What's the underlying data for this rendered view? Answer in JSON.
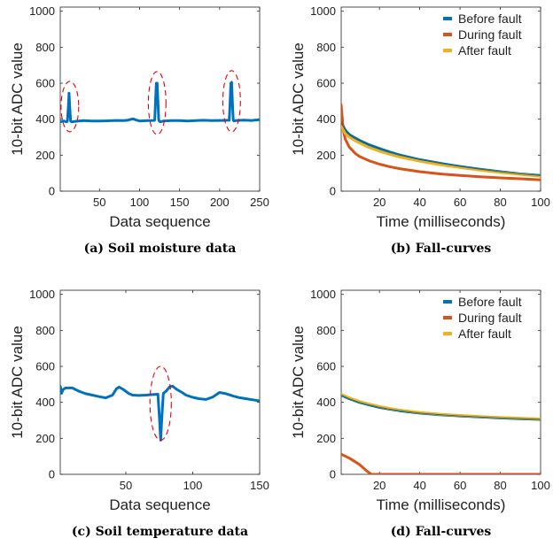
{
  "colors": {
    "before": "#0072BD",
    "during": "#D95319",
    "after": "#EDB120",
    "circle": "#E8000B",
    "axis": "#262626"
  },
  "panels": [
    {
      "caption": "(a) Soil moisture data",
      "chart_data": {
        "type": "line",
        "title": "",
        "xlabel": "Data sequence",
        "ylabel": "10-bit ADC value",
        "xlim": [
          1,
          250
        ],
        "ylim": [
          0,
          1023
        ],
        "xticks": [
          50,
          100,
          150,
          200,
          250
        ],
        "yticks": [
          0,
          200,
          400,
          600,
          800,
          1000
        ],
        "grid": false,
        "series": [
          {
            "color": "before",
            "x": [
              1,
              5,
              9,
              10,
              11,
              12,
              13,
              14,
              15,
              20,
              30,
              40,
              50,
              60,
              70,
              80,
              85,
              88,
              92,
              96,
              100,
              110,
              118,
              119,
              120,
              121,
              122,
              123,
              124,
              125,
              126,
              130,
              140,
              150,
              160,
              170,
              180,
              190,
              200,
              210,
              212,
              213,
              214,
              215,
              216,
              217,
              218,
              220,
              230,
              240,
              250
            ],
            "y": [
              385,
              390,
              385,
              390,
              460,
              545,
              460,
              390,
              385,
              388,
              392,
              390,
              390,
              391,
              393,
              392,
              394,
              398,
              402,
              395,
              390,
              392,
              393,
              395,
              500,
              600,
              600,
              500,
              395,
              388,
              385,
              390,
              392,
              392,
              390,
              392,
              394,
              392,
              393,
              394,
              394,
              490,
              600,
              605,
              490,
              394,
              390,
              392,
              395,
              393,
              397
            ]
          }
        ],
        "annotations": [
          {
            "type": "dashed-ellipse",
            "cx": 13,
            "cy": 470,
            "rx": 11,
            "ry": 140
          },
          {
            "type": "dashed-ellipse",
            "cx": 122,
            "cy": 490,
            "rx": 11,
            "ry": 175
          },
          {
            "type": "dashed-ellipse",
            "cx": 215,
            "cy": 500,
            "rx": 11,
            "ry": 170
          }
        ]
      }
    },
    {
      "caption": "(b) Fall-curves",
      "chart_data": {
        "type": "line",
        "title": "",
        "xlabel": "Time (milliseconds)",
        "ylabel": "10-bit ADC value",
        "xlim": [
          1,
          100
        ],
        "ylim": [
          0,
          1023
        ],
        "xticks": [
          20,
          40,
          60,
          80,
          100
        ],
        "yticks": [
          0,
          200,
          400,
          600,
          800,
          1000
        ],
        "grid": false,
        "legend_position": "top-right",
        "series": [
          {
            "name": "Before fault",
            "color": "before",
            "x": [
              1,
              3,
              5,
              8,
              10,
              15,
              20,
              25,
              30,
              40,
              50,
              60,
              70,
              80,
              90,
              100
            ],
            "y": [
              385,
              340,
              315,
              295,
              283,
              257,
              237,
              218,
              201,
              175,
              155,
              137,
              122,
              108,
              96,
              87
            ]
          },
          {
            "name": "During fault",
            "color": "during",
            "x": [
              1,
              2,
              3,
              5,
              8,
              10,
              15,
              20,
              25,
              30,
              40,
              50,
              60,
              70,
              80,
              90,
              100
            ],
            "y": [
              480,
              340,
              290,
              245,
              210,
              193,
              168,
              150,
              136,
              125,
              108,
              96,
              87,
              80,
              74,
              69,
              63
            ]
          },
          {
            "name": "After fault",
            "color": "after",
            "x": [
              1,
              3,
              5,
              8,
              10,
              15,
              20,
              25,
              30,
              40,
              50,
              60,
              70,
              80,
              90,
              100
            ],
            "y": [
              360,
              320,
              300,
              280,
              268,
              242,
              222,
              205,
              190,
              166,
              147,
              131,
              117,
              104,
              93,
              82
            ]
          }
        ]
      }
    },
    {
      "caption": "(c) Soil temperature data",
      "chart_data": {
        "type": "line",
        "title": "",
        "xlabel": "Data sequence",
        "ylabel": "10-bit ADC value",
        "xlim": [
          1,
          150
        ],
        "ylim": [
          0,
          1023
        ],
        "xticks": [
          50,
          100,
          150
        ],
        "yticks": [
          0,
          200,
          400,
          600,
          800,
          1000
        ],
        "grid": false,
        "series": [
          {
            "color": "before",
            "x": [
              1,
              2,
              3,
              5,
              10,
              15,
              20,
              25,
              30,
              35,
              40,
              43,
              45,
              48,
              52,
              55,
              60,
              65,
              70,
              74,
              75,
              76,
              77,
              78,
              80,
              83,
              85,
              88,
              92,
              95,
              100,
              105,
              110,
              115,
              120,
              125,
              130,
              135,
              140,
              145,
              150
            ],
            "y": [
              490,
              450,
              470,
              480,
              480,
              462,
              448,
              440,
              432,
              425,
              440,
              475,
              485,
              472,
              450,
              440,
              438,
              440,
              443,
              445,
              330,
              190,
              330,
              450,
              462,
              488,
              490,
              472,
              455,
              440,
              428,
              420,
              416,
              430,
              455,
              448,
              436,
              426,
              420,
              414,
              408
            ]
          }
        ],
        "annotations": [
          {
            "type": "dashed-ellipse",
            "cx": 76,
            "cy": 395,
            "rx": 8,
            "ry": 205
          }
        ]
      }
    },
    {
      "caption": "(d) Fall-curves",
      "chart_data": {
        "type": "line",
        "title": "",
        "xlabel": "Time (milliseconds)",
        "ylabel": "10-bit ADC value",
        "xlim": [
          1,
          100
        ],
        "ylim": [
          0,
          1023
        ],
        "xticks": [
          20,
          40,
          60,
          80,
          100
        ],
        "yticks": [
          0,
          200,
          400,
          600,
          800,
          1000
        ],
        "grid": false,
        "legend_position": "top-right",
        "series": [
          {
            "name": "Before fault",
            "color": "before",
            "x": [
              1,
              3,
              5,
              10,
              15,
              20,
              25,
              30,
              40,
              50,
              60,
              70,
              80,
              90,
              100
            ],
            "y": [
              440,
              430,
              420,
              400,
              385,
              372,
              362,
              353,
              340,
              331,
              324,
              318,
              313,
              309,
              305
            ]
          },
          {
            "name": "During fault",
            "color": "during",
            "x": [
              1,
              5,
              10,
              13,
              15,
              16,
              20,
              30,
              40,
              50,
              60,
              70,
              80,
              90,
              100
            ],
            "y": [
              112,
              90,
              55,
              25,
              8,
              0,
              0,
              0,
              0,
              0,
              0,
              0,
              0,
              0,
              0
            ]
          },
          {
            "name": "After fault",
            "color": "after",
            "x": [
              1,
              3,
              5,
              10,
              15,
              20,
              25,
              30,
              40,
              50,
              60,
              70,
              80,
              90,
              100
            ],
            "y": [
              445,
              435,
              425,
              405,
              390,
              377,
              366,
              357,
              344,
              334,
              327,
              321,
              316,
              312,
              308
            ]
          }
        ]
      }
    }
  ]
}
